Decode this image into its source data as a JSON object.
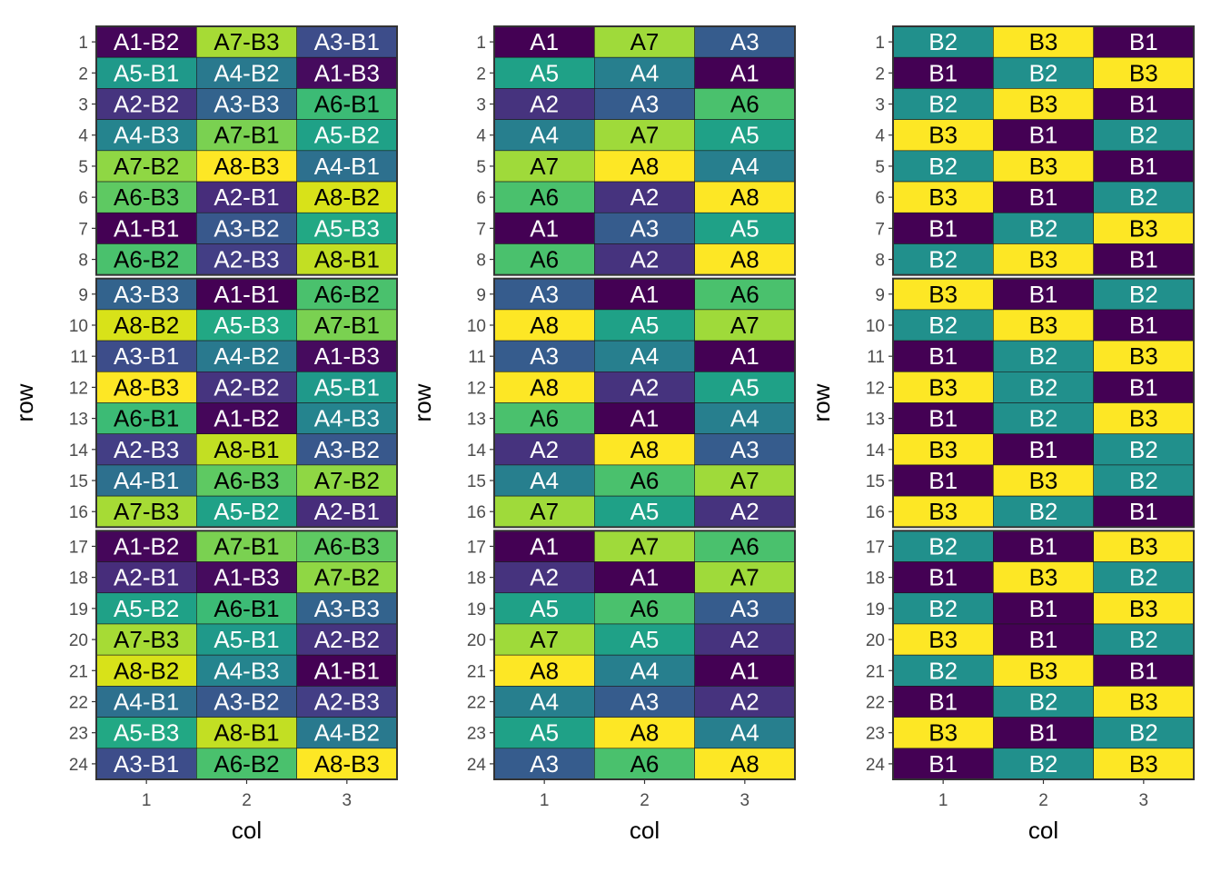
{
  "chart_data": [
    {
      "type": "heatmap",
      "xlabel": "col",
      "ylabel": "row",
      "x_ticks": [
        "1",
        "2",
        "3"
      ],
      "y_ticks": [
        "1",
        "2",
        "3",
        "4",
        "5",
        "6",
        "7",
        "8",
        "9",
        "10",
        "11",
        "12",
        "13",
        "14",
        "15",
        "16",
        "17",
        "18",
        "19",
        "20",
        "21",
        "22",
        "23",
        "24"
      ],
      "blocks": [
        [
          1,
          8
        ],
        [
          9,
          16
        ],
        [
          17,
          24
        ]
      ],
      "grid": false,
      "cells": [
        [
          "A1-B2",
          "A7-B3",
          "A3-B1"
        ],
        [
          "A5-B1",
          "A4-B2",
          "A1-B3"
        ],
        [
          "A2-B2",
          "A3-B3",
          "A6-B1"
        ],
        [
          "A4-B3",
          "A7-B1",
          "A5-B2"
        ],
        [
          "A7-B2",
          "A8-B3",
          "A4-B1"
        ],
        [
          "A6-B3",
          "A2-B1",
          "A8-B2"
        ],
        [
          "A1-B1",
          "A3-B2",
          "A5-B3"
        ],
        [
          "A6-B2",
          "A2-B3",
          "A8-B1"
        ],
        [
          "A3-B3",
          "A1-B1",
          "A6-B2"
        ],
        [
          "A8-B2",
          "A5-B3",
          "A7-B1"
        ],
        [
          "A3-B1",
          "A4-B2",
          "A1-B3"
        ],
        [
          "A8-B3",
          "A2-B2",
          "A5-B1"
        ],
        [
          "A6-B1",
          "A1-B2",
          "A4-B3"
        ],
        [
          "A2-B3",
          "A8-B1",
          "A3-B2"
        ],
        [
          "A4-B1",
          "A6-B3",
          "A7-B2"
        ],
        [
          "A7-B3",
          "A5-B2",
          "A2-B1"
        ],
        [
          "A1-B2",
          "A7-B1",
          "A6-B3"
        ],
        [
          "A2-B1",
          "A1-B3",
          "A7-B2"
        ],
        [
          "A5-B2",
          "A6-B1",
          "A3-B3"
        ],
        [
          "A7-B3",
          "A5-B1",
          "A2-B2"
        ],
        [
          "A8-B2",
          "A4-B3",
          "A1-B1"
        ],
        [
          "A4-B1",
          "A3-B2",
          "A2-B3"
        ],
        [
          "A5-B3",
          "A8-B1",
          "A4-B2"
        ],
        [
          "A3-B1",
          "A6-B2",
          "A8-B3"
        ]
      ],
      "fill_factor": "combined",
      "color_scale": {
        "A1-B1": "#440154",
        "A1-B2": "#45065A",
        "A1-B3": "#460B5E",
        "A2-B1": "#472D7B",
        "A2-B2": "#46347F",
        "A2-B3": "#433E85",
        "A3-B1": "#3D4D8A",
        "A3-B2": "#38588C",
        "A3-B3": "#33638D",
        "A4-B1": "#2D708E",
        "A4-B2": "#29798E",
        "A4-B3": "#25848E",
        "A5-B1": "#1F998A",
        "A5-B2": "#1FA187",
        "A5-B3": "#22A884",
        "A6-B1": "#3CBB75",
        "A6-B2": "#4AC16D",
        "A6-B3": "#5EC962",
        "A7-B1": "#7AD151",
        "A7-B2": "#8FD744",
        "A7-B3": "#A6DB35",
        "A8-B1": "#C2DF23",
        "A8-B2": "#D8E219",
        "A8-B3": "#FDE725"
      },
      "label_colors": {
        "A1-B1": "#FFFFFF",
        "A1-B2": "#FFFFFF",
        "A1-B3": "#FFFFFF",
        "A2-B1": "#FFFFFF",
        "A2-B2": "#FFFFFF",
        "A2-B3": "#FFFFFF",
        "A3-B1": "#FFFFFF",
        "A3-B2": "#FFFFFF",
        "A3-B3": "#FFFFFF",
        "A4-B1": "#FFFFFF",
        "A4-B2": "#FFFFFF",
        "A4-B3": "#FFFFFF",
        "A5-B1": "#FFFFFF",
        "A5-B2": "#FFFFFF",
        "A5-B3": "#FFFFFF",
        "A6-B1": "#000000",
        "A6-B2": "#000000",
        "A6-B3": "#000000",
        "A7-B1": "#000000",
        "A7-B2": "#000000",
        "A7-B3": "#000000",
        "A8-B1": "#000000",
        "A8-B2": "#000000",
        "A8-B3": "#000000"
      }
    },
    {
      "type": "heatmap",
      "xlabel": "col",
      "ylabel": "row",
      "x_ticks": [
        "1",
        "2",
        "3"
      ],
      "y_ticks": [
        "1",
        "2",
        "3",
        "4",
        "5",
        "6",
        "7",
        "8",
        "9",
        "10",
        "11",
        "12",
        "13",
        "14",
        "15",
        "16",
        "17",
        "18",
        "19",
        "20",
        "21",
        "22",
        "23",
        "24"
      ],
      "blocks": [
        [
          1,
          8
        ],
        [
          9,
          16
        ],
        [
          17,
          24
        ]
      ],
      "grid": false,
      "cells": [
        [
          "A1",
          "A7",
          "A3"
        ],
        [
          "A5",
          "A4",
          "A1"
        ],
        [
          "A2",
          "A3",
          "A6"
        ],
        [
          "A4",
          "A7",
          "A5"
        ],
        [
          "A7",
          "A8",
          "A4"
        ],
        [
          "A6",
          "A2",
          "A8"
        ],
        [
          "A1",
          "A3",
          "A5"
        ],
        [
          "A6",
          "A2",
          "A8"
        ],
        [
          "A3",
          "A1",
          "A6"
        ],
        [
          "A8",
          "A5",
          "A7"
        ],
        [
          "A3",
          "A4",
          "A1"
        ],
        [
          "A8",
          "A2",
          "A5"
        ],
        [
          "A6",
          "A1",
          "A4"
        ],
        [
          "A2",
          "A8",
          "A3"
        ],
        [
          "A4",
          "A6",
          "A7"
        ],
        [
          "A7",
          "A5",
          "A2"
        ],
        [
          "A1",
          "A7",
          "A6"
        ],
        [
          "A2",
          "A1",
          "A7"
        ],
        [
          "A5",
          "A6",
          "A3"
        ],
        [
          "A7",
          "A5",
          "A2"
        ],
        [
          "A8",
          "A4",
          "A1"
        ],
        [
          "A4",
          "A3",
          "A2"
        ],
        [
          "A5",
          "A8",
          "A4"
        ],
        [
          "A3",
          "A6",
          "A8"
        ]
      ],
      "fill_factor": "A",
      "color_scale": {
        "A1": "#440154",
        "A2": "#46337E",
        "A3": "#365C8D",
        "A4": "#277F8E",
        "A5": "#1FA187",
        "A6": "#4AC16D",
        "A7": "#9FDA3A",
        "A8": "#FDE725"
      },
      "label_colors": {
        "A1": "#FFFFFF",
        "A2": "#FFFFFF",
        "A3": "#FFFFFF",
        "A4": "#FFFFFF",
        "A5": "#FFFFFF",
        "A6": "#000000",
        "A7": "#000000",
        "A8": "#000000"
      }
    },
    {
      "type": "heatmap",
      "xlabel": "col",
      "ylabel": "row",
      "x_ticks": [
        "1",
        "2",
        "3"
      ],
      "y_ticks": [
        "1",
        "2",
        "3",
        "4",
        "5",
        "6",
        "7",
        "8",
        "9",
        "10",
        "11",
        "12",
        "13",
        "14",
        "15",
        "16",
        "17",
        "18",
        "19",
        "20",
        "21",
        "22",
        "23",
        "24"
      ],
      "blocks": [
        [
          1,
          8
        ],
        [
          9,
          16
        ],
        [
          17,
          24
        ]
      ],
      "grid": false,
      "cells": [
        [
          "B2",
          "B3",
          "B1"
        ],
        [
          "B1",
          "B2",
          "B3"
        ],
        [
          "B2",
          "B3",
          "B1"
        ],
        [
          "B3",
          "B1",
          "B2"
        ],
        [
          "B2",
          "B3",
          "B1"
        ],
        [
          "B3",
          "B1",
          "B2"
        ],
        [
          "B1",
          "B2",
          "B3"
        ],
        [
          "B2",
          "B3",
          "B1"
        ],
        [
          "B3",
          "B1",
          "B2"
        ],
        [
          "B2",
          "B3",
          "B1"
        ],
        [
          "B1",
          "B2",
          "B3"
        ],
        [
          "B3",
          "B2",
          "B1"
        ],
        [
          "B1",
          "B2",
          "B3"
        ],
        [
          "B3",
          "B1",
          "B2"
        ],
        [
          "B1",
          "B3",
          "B2"
        ],
        [
          "B3",
          "B2",
          "B1"
        ],
        [
          "B2",
          "B1",
          "B3"
        ],
        [
          "B1",
          "B3",
          "B2"
        ],
        [
          "B2",
          "B1",
          "B3"
        ],
        [
          "B3",
          "B1",
          "B2"
        ],
        [
          "B2",
          "B3",
          "B1"
        ],
        [
          "B1",
          "B2",
          "B3"
        ],
        [
          "B3",
          "B1",
          "B2"
        ],
        [
          "B1",
          "B2",
          "B3"
        ]
      ],
      "fill_factor": "B",
      "color_scale": {
        "B1": "#440154",
        "B2": "#21908C",
        "B3": "#FDE725"
      },
      "label_colors": {
        "B1": "#FFFFFF",
        "B2": "#FFFFFF",
        "B3": "#000000"
      }
    }
  ]
}
